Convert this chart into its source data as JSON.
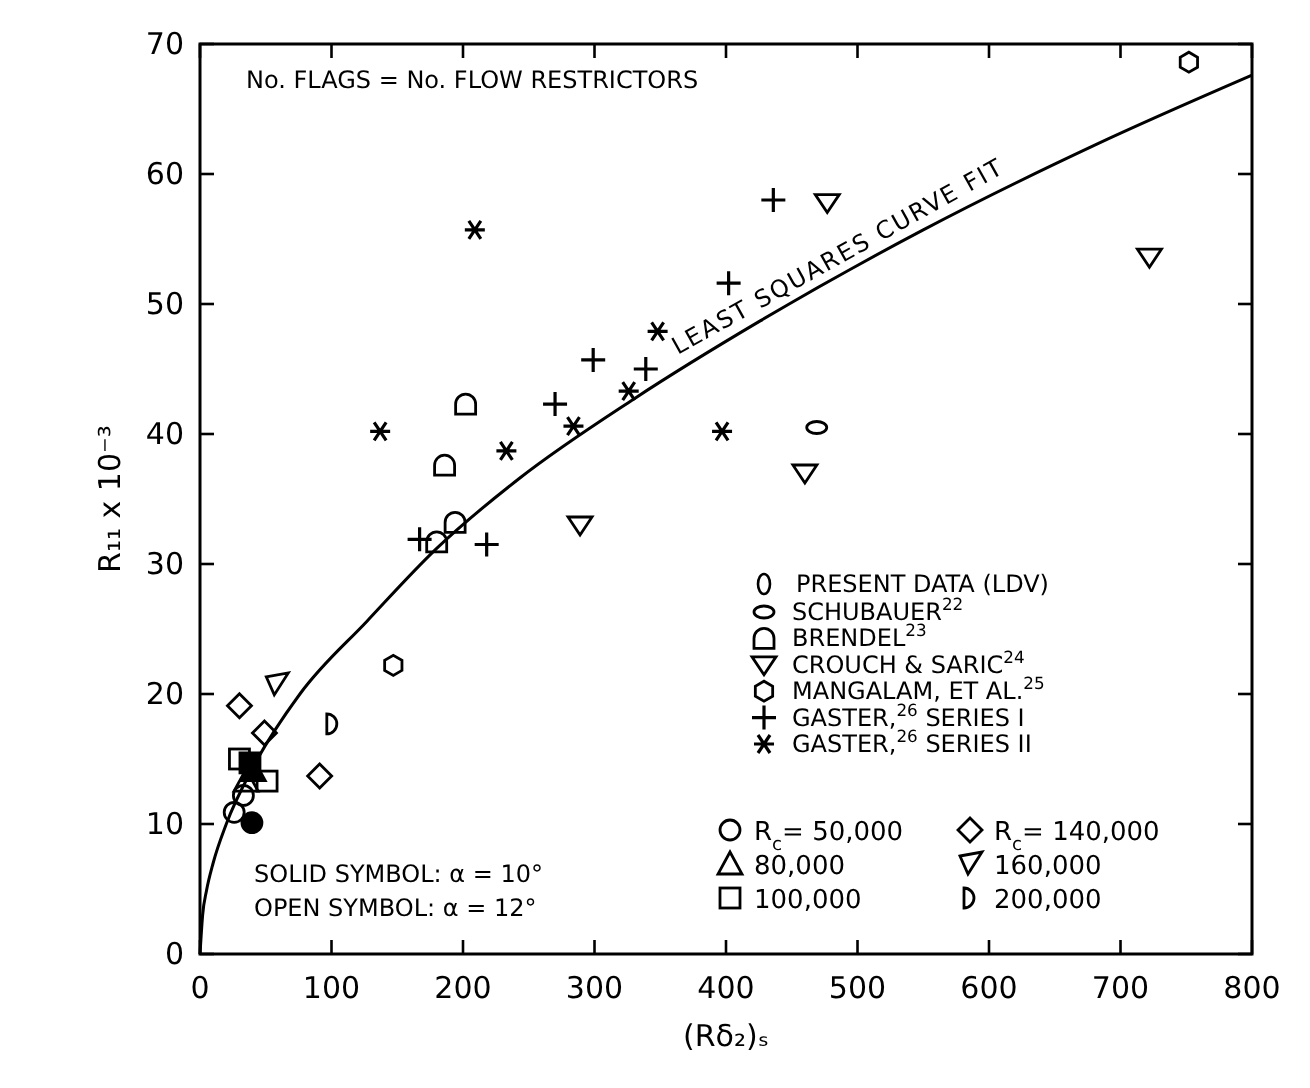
{
  "chart_data": {
    "type": "scatter",
    "xlabel": "(Rδ₂)ₛ",
    "ylabel": "R₁₁ x 10⁻³",
    "xlim": [
      0,
      800
    ],
    "ylim": [
      0,
      70
    ],
    "xticks": [
      0,
      100,
      200,
      300,
      400,
      500,
      600,
      700,
      800
    ],
    "yticks": [
      0,
      10,
      20,
      30,
      40,
      50,
      60,
      70
    ],
    "grid": false,
    "legend": "bottom right",
    "annotations": [
      "No. FLAGS = No. FLOW RESTRICTORS",
      "PRESENT DATA (LDV)",
      "SOLID SYMBOL: α = 10°",
      "OPEN SYMBOL: α = 12°"
    ],
    "series": [
      {
        "name": "SCHUBAUER$^{22}$",
        "color": "#000000",
        "x": [
          469
        ],
        "values": [
          40.5
        ]
      },
      {
        "name": "BRENDEL$^{23}$",
        "color": "#000000",
        "x": [
          202,
          186,
          194,
          180
        ],
        "values": [
          42.3,
          37.6,
          33.2,
          31.7
        ]
      },
      {
        "name": "CROUCH & SARIC$^{24}$",
        "color": "#000000",
        "x": [
          289,
          477,
          722,
          460
        ],
        "values": [
          33.0,
          57.8,
          53.6,
          37.0
        ]
      },
      {
        "name": "MANGALAM, ET AL.$^{25}$",
        "color": "#000000",
        "x": [
          752,
          147
        ],
        "values": [
          68.6,
          22.2
        ]
      },
      {
        "name": "GASTER,$^{26}$ SERIES I",
        "color": "#000000",
        "marker": "cross",
        "x": [
          167,
          218,
          270,
          299,
          339,
          402,
          436
        ],
        "values": [
          31.9,
          31.5,
          42.3,
          45.7,
          45.0,
          51.6,
          58.0
        ]
      },
      {
        "name": "GASTER,$^{26}$ SERIES II",
        "color": "#000000",
        "x": [
          137,
          209,
          233,
          284,
          326,
          348,
          397
        ],
        "values": [
          40.2,
          55.7,
          38.7,
          40.6,
          43.3,
          47.9,
          40.2
        ]
      },
      {
        "name": "R$_{c}$= 50,000",
        "color": "#000000",
        "marker": "circle",
        "x": [
          26,
          33
        ],
        "values": [
          10.9,
          12.2
        ]
      },
      {
        "name": "80,000",
        "color": "#000000",
        "marker": "triangle",
        "x": [
          35
        ],
        "values": [
          13.3
        ]
      },
      {
        "name": "100,000",
        "color": "#000000",
        "marker": "square",
        "x": [
          30,
          51
        ],
        "values": [
          15.0,
          13.3
        ]
      },
      {
        "name": "R$_{c}$= 140,000",
        "color": "#000000",
        "marker": "diamond",
        "x": [
          30,
          49,
          91
        ],
        "values": [
          19.1,
          17.0,
          13.7
        ]
      },
      {
        "name": "160,000",
        "color": "#000000",
        "x": [
          58
        ],
        "values": [
          20.7
        ]
      },
      {
        "name": "200,000",
        "color": "#000000",
        "x": [
          101
        ],
        "values": [
          17.7
        ]
      },
      {
        "color": "#000000",
        "marker": "circle",
        "x": [
          39.5
        ],
        "values": [
          10.1
        ]
      },
      {
        "color": "#000000",
        "marker": "square",
        "x": [
          38
        ],
        "values": [
          14.7
        ]
      },
      {
        "color": "#000000",
        "marker": "triangle",
        "x": [
          40.5
        ],
        "values": [
          14.1
        ]
      },
      {
        "name": "LEAST SQUARES CURVE FIT",
        "type": "line",
        "color": "#000000",
        "line_style": "solid",
        "marker": "none",
        "x": [
          0,
          2,
          5,
          10,
          20,
          40,
          76,
          127,
          180,
          243,
          330,
          426,
          550,
          680,
          800
        ],
        "values": [
          0,
          3.0,
          4.9,
          7.0,
          10,
          14.3,
          20,
          25.6,
          31.2,
          36.6,
          42.7,
          48.7,
          55.7,
          62.2,
          67.6
        ]
      }
    ]
  }
}
